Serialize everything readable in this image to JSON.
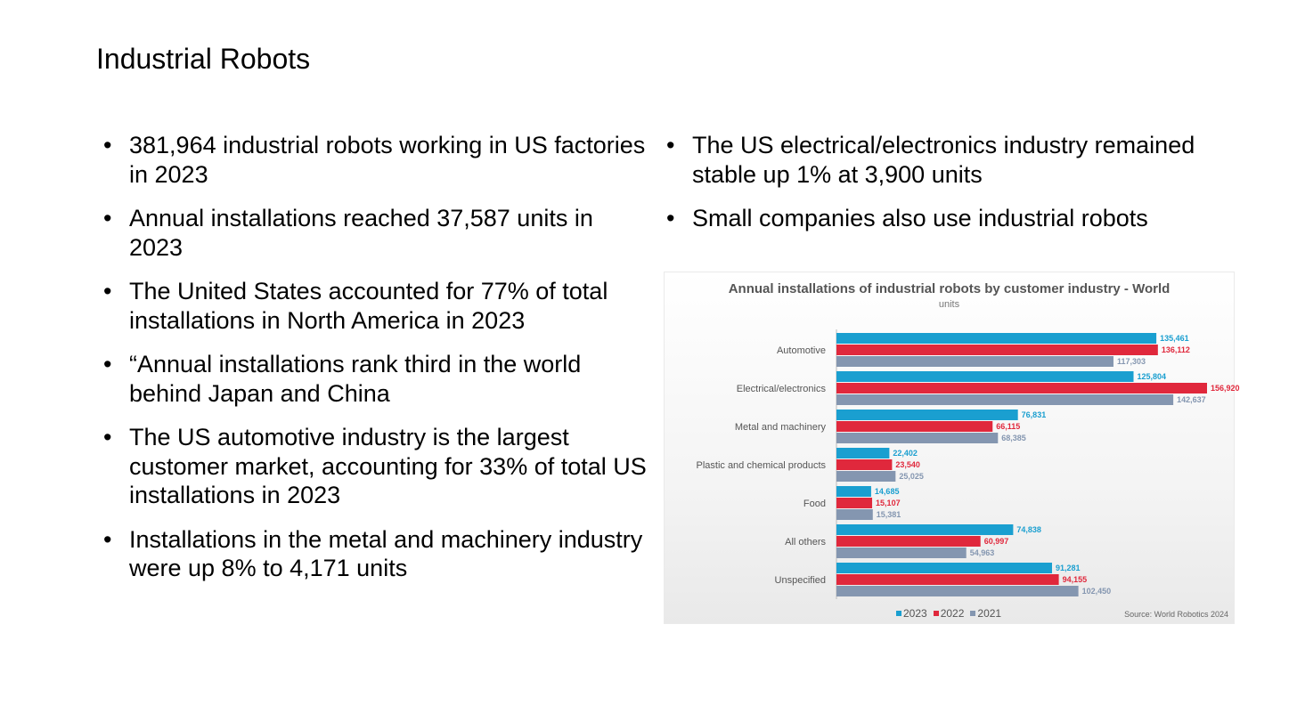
{
  "slide": {
    "title": "Industrial Robots",
    "left_bullets": [
      "381,964 industrial robots working in US factories in 2023",
      "Annual installations reached 37,587 units in 2023",
      "The United States accounted for 77% of total installations in North America in 2023",
      "“Annual installations rank third in the world behind Japan and China",
      "The US automotive industry is the largest customer market, accounting for 33% of total US installations in 2023",
      "Installations in the metal and machinery industry were up 8% to 4,171 units"
    ],
    "right_bullets": [
      "The US electrical/electronics industry remained stable up 1% at 3,900 units",
      "Small companies also use industrial robots"
    ],
    "bullet_symbol": "•"
  },
  "chart_data": {
    "type": "bar",
    "orientation": "horizontal",
    "title": "Annual installations of industrial robots by customer industry - World",
    "subtitle": "units",
    "categories": [
      "Automotive",
      "Electrical/electronics",
      "Metal and machinery",
      "Plastic and chemical products",
      "Food",
      "All others",
      "Unspecified"
    ],
    "series": [
      {
        "name": "2023",
        "color": "#1a9fd0",
        "values": [
          135461,
          125804,
          76831,
          22402,
          14685,
          74838,
          91281
        ],
        "labels": [
          "135,461",
          "125,804",
          "76,831",
          "22,402",
          "14,685",
          "74,838",
          "91,281"
        ]
      },
      {
        "name": "2022",
        "color": "#e0283c",
        "values": [
          136112,
          156920,
          66115,
          23540,
          15107,
          60997,
          94155
        ],
        "labels": [
          "136,112",
          "156,920",
          "66,115",
          "23,540",
          "15,107",
          "60,997",
          "94,155"
        ]
      },
      {
        "name": "2021",
        "color": "#8496b0",
        "values": [
          117303,
          142637,
          68385,
          25025,
          15381,
          54963,
          102450
        ],
        "labels": [
          "117,303",
          "142,637",
          "68,385",
          "25,025",
          "15,381",
          "54,963",
          "102,450"
        ]
      }
    ],
    "xlim": [
      0,
      156920
    ],
    "grid": false,
    "legend_position": "bottom",
    "source": "Source: World Robotics 2024"
  }
}
